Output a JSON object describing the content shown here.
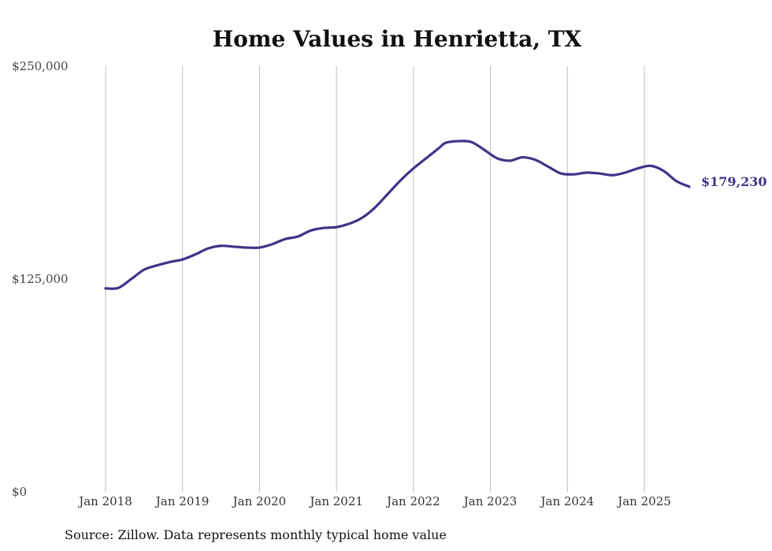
{
  "chart_data": {
    "type": "line",
    "title": "Home Values in Henrietta, TX",
    "xlabel": "",
    "ylabel": "",
    "ylim": [
      0,
      250000
    ],
    "y_ticks": [
      0,
      125000,
      250000
    ],
    "y_tick_labels": [
      "$0",
      "$125,000",
      "$250,000"
    ],
    "x_range": [
      "2017-12",
      "2025-08"
    ],
    "x_ticks": [
      "2018-01",
      "2019-01",
      "2020-01",
      "2021-01",
      "2022-01",
      "2023-01",
      "2024-01",
      "2025-01"
    ],
    "x_tick_labels": [
      "Jan 2018",
      "Jan 2019",
      "Jan 2020",
      "Jan 2021",
      "Jan 2022",
      "Jan 2023",
      "Jan 2024",
      "Jan 2025"
    ],
    "grid": "vertical",
    "series": [
      {
        "color": "#3d3588",
        "end_label": "$179,230",
        "points": [
          [
            "2018-01",
            119500
          ],
          [
            "2018-03",
            119800
          ],
          [
            "2018-05",
            125000
          ],
          [
            "2018-07",
            130500
          ],
          [
            "2018-09",
            133000
          ],
          [
            "2018-11",
            135000
          ],
          [
            "2019-01",
            136500
          ],
          [
            "2019-03",
            139500
          ],
          [
            "2019-05",
            143000
          ],
          [
            "2019-07",
            144500
          ],
          [
            "2019-09",
            144000
          ],
          [
            "2019-11",
            143500
          ],
          [
            "2020-01",
            143500
          ],
          [
            "2020-03",
            145500
          ],
          [
            "2020-05",
            148500
          ],
          [
            "2020-07",
            150000
          ],
          [
            "2020-09",
            153500
          ],
          [
            "2020-11",
            155000
          ],
          [
            "2021-01",
            155500
          ],
          [
            "2021-03",
            157500
          ],
          [
            "2021-05",
            161000
          ],
          [
            "2021-07",
            167000
          ],
          [
            "2021-09",
            175000
          ],
          [
            "2021-11",
            183000
          ],
          [
            "2022-01",
            190000
          ],
          [
            "2022-03",
            196000
          ],
          [
            "2022-05",
            202000
          ],
          [
            "2022-06",
            205000
          ],
          [
            "2022-08",
            206000
          ],
          [
            "2022-10",
            205500
          ],
          [
            "2022-12",
            201000
          ],
          [
            "2023-02",
            196000
          ],
          [
            "2023-04",
            194500
          ],
          [
            "2023-06",
            196500
          ],
          [
            "2023-08",
            195000
          ],
          [
            "2023-10",
            191000
          ],
          [
            "2023-12",
            187000
          ],
          [
            "2024-02",
            186500
          ],
          [
            "2024-04",
            187500
          ],
          [
            "2024-06",
            187000
          ],
          [
            "2024-08",
            186000
          ],
          [
            "2024-10",
            187500
          ],
          [
            "2024-12",
            190000
          ],
          [
            "2025-02",
            191500
          ],
          [
            "2025-04",
            188500
          ],
          [
            "2025-06",
            182500
          ],
          [
            "2025-08",
            179230
          ]
        ]
      }
    ],
    "source": "Source: Zillow. Data represents monthly typical home value"
  }
}
